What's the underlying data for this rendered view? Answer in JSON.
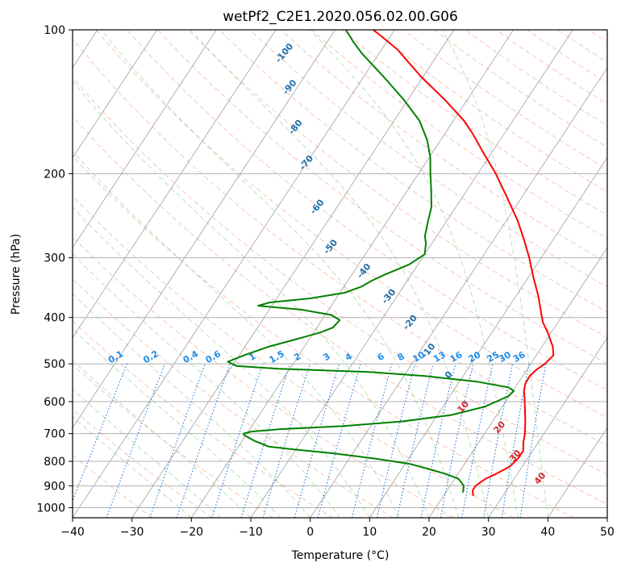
{
  "chart_data": {
    "type": "line",
    "subtype": "skew-t log-p diagram",
    "title": "wetPf2_C2E1.2020.056.02.00.G06",
    "xlabel": "Temperature (°C)",
    "ylabel": "Pressure (hPa)",
    "xlim": [
      -40,
      50
    ],
    "ylim_hpa": [
      1050,
      100
    ],
    "y_scale": "log",
    "grid": true,
    "x_ticks": [
      -40,
      -30,
      -20,
      -10,
      0,
      10,
      20,
      30,
      40,
      50
    ],
    "x_tick_labels": [
      "−40",
      "−30",
      "−20",
      "−10",
      "0",
      "10",
      "20",
      "30",
      "40",
      "50"
    ],
    "y_ticks": [
      1000,
      900,
      800,
      700,
      600,
      500,
      400,
      300,
      200,
      100
    ],
    "y_tick_labels": [
      "1000",
      "900",
      "800",
      "700",
      "600",
      "500",
      "400",
      "300",
      "200",
      "100"
    ],
    "isotherm_color": "#888888",
    "dry_adiabat_color": "#f6a58d",
    "moist_adiabat_color": "#8fc98f",
    "mixing_ratio_color": "#1f77e0",
    "series": [
      {
        "role": "temperature",
        "color": "#ff0000",
        "points": [
          {
            "p": 945,
            "t": 25.0
          },
          {
            "p": 920,
            "t": 24.3
          },
          {
            "p": 900,
            "t": 24.3
          },
          {
            "p": 870,
            "t": 25.2
          },
          {
            "p": 850,
            "t": 26.4
          },
          {
            "p": 820,
            "t": 27.9
          },
          {
            "p": 790,
            "t": 28.4
          },
          {
            "p": 760,
            "t": 28.4
          },
          {
            "p": 730,
            "t": 27.5
          },
          {
            "p": 700,
            "t": 26.8
          },
          {
            "p": 660,
            "t": 25.5
          },
          {
            "p": 620,
            "t": 24.0
          },
          {
            "p": 590,
            "t": 22.8
          },
          {
            "p": 570,
            "t": 21.9
          },
          {
            "p": 550,
            "t": 21.3
          },
          {
            "p": 530,
            "t": 21.2
          },
          {
            "p": 515,
            "t": 21.6
          },
          {
            "p": 500,
            "t": 22.4
          },
          {
            "p": 480,
            "t": 22.9
          },
          {
            "p": 460,
            "t": 21.8
          },
          {
            "p": 430,
            "t": 19.4
          },
          {
            "p": 410,
            "t": 17.5
          },
          {
            "p": 395,
            "t": 16.4
          },
          {
            "p": 360,
            "t": 13.7
          },
          {
            "p": 330,
            "t": 10.9
          },
          {
            "p": 300,
            "t": 8.0
          },
          {
            "p": 275,
            "t": 5.1
          },
          {
            "p": 250,
            "t": 1.8
          },
          {
            "p": 220,
            "t": -3.2
          },
          {
            "p": 200,
            "t": -7.0
          },
          {
            "p": 180,
            "t": -11.6
          },
          {
            "p": 165,
            "t": -15.3
          },
          {
            "p": 155,
            "t": -18.2
          },
          {
            "p": 140,
            "t": -23.8
          },
          {
            "p": 125,
            "t": -30.5
          },
          {
            "p": 110,
            "t": -37.3
          },
          {
            "p": 103,
            "t": -41.6
          },
          {
            "p": 100,
            "t": -43.6
          }
        ]
      },
      {
        "role": "dewpoint",
        "color": "#008000",
        "points": [
          {
            "p": 930,
            "t": 22.9
          },
          {
            "p": 900,
            "t": 22.3
          },
          {
            "p": 870,
            "t": 20.6
          },
          {
            "p": 850,
            "t": 17.9
          },
          {
            "p": 830,
            "t": 14.5
          },
          {
            "p": 810,
            "t": 10.8
          },
          {
            "p": 790,
            "t": 4.5
          },
          {
            "p": 770,
            "t": -3.1
          },
          {
            "p": 755,
            "t": -10.5
          },
          {
            "p": 745,
            "t": -14.9
          },
          {
            "p": 725,
            "t": -17.9
          },
          {
            "p": 705,
            "t": -20.3
          },
          {
            "p": 700,
            "t": -20.6
          },
          {
            "p": 693,
            "t": -19.5
          },
          {
            "p": 685,
            "t": -14.9
          },
          {
            "p": 675,
            "t": -4.5
          },
          {
            "p": 660,
            "t": 4.8
          },
          {
            "p": 640,
            "t": 12.3
          },
          {
            "p": 615,
            "t": 17.0
          },
          {
            "p": 600,
            "t": 18.4
          },
          {
            "p": 585,
            "t": 19.8
          },
          {
            "p": 570,
            "t": 20.2
          },
          {
            "p": 560,
            "t": 18.9
          },
          {
            "p": 545,
            "t": 13.0
          },
          {
            "p": 530,
            "t": 3.4
          },
          {
            "p": 520,
            "t": -6.3
          },
          {
            "p": 512,
            "t": -21.9
          },
          {
            "p": 505,
            "t": -29.3
          },
          {
            "p": 495,
            "t": -31.2
          },
          {
            "p": 480,
            "t": -29.2
          },
          {
            "p": 460,
            "t": -25.9
          },
          {
            "p": 445,
            "t": -22.4
          },
          {
            "p": 430,
            "t": -18.9
          },
          {
            "p": 420,
            "t": -17.3
          },
          {
            "p": 405,
            "t": -17.0
          },
          {
            "p": 395,
            "t": -19.0
          },
          {
            "p": 385,
            "t": -24.7
          },
          {
            "p": 378,
            "t": -32.3
          },
          {
            "p": 372,
            "t": -30.7
          },
          {
            "p": 365,
            "t": -24.5
          },
          {
            "p": 355,
            "t": -19.2
          },
          {
            "p": 345,
            "t": -17.1
          },
          {
            "p": 335,
            "t": -16.0
          },
          {
            "p": 325,
            "t": -14.4
          },
          {
            "p": 310,
            "t": -11.5
          },
          {
            "p": 295,
            "t": -10.0
          },
          {
            "p": 280,
            "t": -11.0
          },
          {
            "p": 270,
            "t": -12.0
          },
          {
            "p": 250,
            "t": -13.2
          },
          {
            "p": 235,
            "t": -14.1
          },
          {
            "p": 215,
            "t": -16.2
          },
          {
            "p": 200,
            "t": -18.0
          },
          {
            "p": 185,
            "t": -19.8
          },
          {
            "p": 170,
            "t": -22.3
          },
          {
            "p": 155,
            "t": -25.7
          },
          {
            "p": 140,
            "t": -30.7
          },
          {
            "p": 125,
            "t": -36.8
          },
          {
            "p": 112,
            "t": -42.9
          },
          {
            "p": 106,
            "t": -45.6
          },
          {
            "p": 100,
            "t": -48.2
          }
        ]
      }
    ],
    "annotations": {
      "dry_adiabat_labels": [
        {
          "text": "-100",
          "p": 112,
          "t": -55.9
        },
        {
          "text": "-90",
          "p": 132,
          "t": -51.2
        },
        {
          "text": "-80",
          "p": 160,
          "t": -45.8
        },
        {
          "text": "-70",
          "p": 190,
          "t": -40.0
        },
        {
          "text": "-60",
          "p": 235,
          "t": -33.3
        },
        {
          "text": "-50",
          "p": 285,
          "t": -26.6
        },
        {
          "text": "-40",
          "p": 320,
          "t": -18.3
        },
        {
          "text": "-30",
          "p": 362,
          "t": -11.3
        },
        {
          "text": "-20",
          "p": 410,
          "t": -4.8
        },
        {
          "text": "-10",
          "p": 470,
          "t": 1.4
        },
        {
          "text": "0",
          "p": 528,
          "t": 7.5
        },
        {
          "text": "10",
          "p": 616,
          "t": 13.5
        },
        {
          "text": "20",
          "p": 680,
          "t": 21.9
        },
        {
          "text": "30",
          "p": 780,
          "t": 27.7
        },
        {
          "text": "40",
          "p": 870,
          "t": 34.4
        }
      ],
      "mixing_ratio_labels": [
        {
          "text": "0.1",
          "t": -49.8
        },
        {
          "text": "0.2",
          "t": -43.9
        },
        {
          "text": "0.4",
          "t": -37.2
        },
        {
          "text": "0.6",
          "t": -33.4
        },
        {
          "text": "1",
          "t": -26.8
        },
        {
          "text": "1.5",
          "t": -22.7
        },
        {
          "text": "2",
          "t": -19.2
        },
        {
          "text": "3",
          "t": -14.3
        },
        {
          "text": "4",
          "t": -10.6
        },
        {
          "text": "6",
          "t": -5.2
        },
        {
          "text": "8",
          "t": -1.8
        },
        {
          "text": "10",
          "t": 1.2
        },
        {
          "text": "13",
          "t": 4.7
        },
        {
          "text": "16",
          "t": 7.5
        },
        {
          "text": "20",
          "t": 10.6
        },
        {
          "text": "25",
          "t": 13.7
        },
        {
          "text": "30",
          "t": 15.7
        },
        {
          "text": "36",
          "t": 18.1
        }
      ]
    }
  }
}
